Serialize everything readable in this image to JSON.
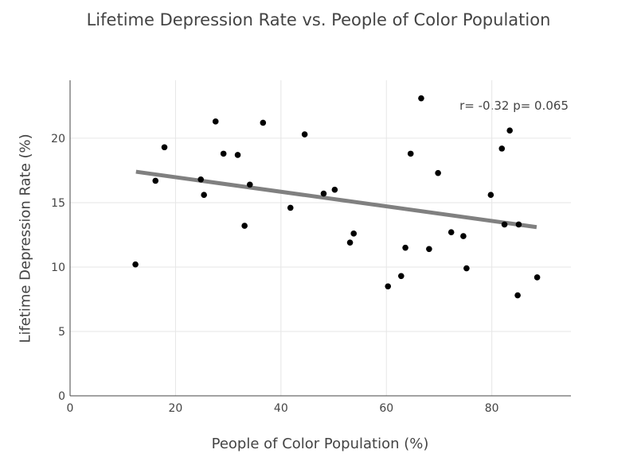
{
  "chart_data": {
    "type": "scatter",
    "title": "Lifetime Depression Rate vs. People of Color Population",
    "xlabel": "People of Color Population (%)",
    "ylabel": "Lifetime Depression Rate (%)",
    "xlim": [
      0,
      95
    ],
    "ylim": [
      0,
      24.5
    ],
    "xticks": [
      0,
      20,
      40,
      60,
      80
    ],
    "yticks": [
      0,
      5,
      10,
      15,
      20
    ],
    "grid": true,
    "annotation": "r= -0.32 p= 0.065",
    "trendline": {
      "x": [
        12.5,
        88.5
      ],
      "y": [
        17.4,
        13.1
      ]
    },
    "points": [
      {
        "x": 12.4,
        "y": 10.2
      },
      {
        "x": 16.2,
        "y": 16.7
      },
      {
        "x": 17.9,
        "y": 19.3
      },
      {
        "x": 24.8,
        "y": 16.8
      },
      {
        "x": 25.4,
        "y": 15.6
      },
      {
        "x": 27.6,
        "y": 21.3
      },
      {
        "x": 29.1,
        "y": 18.8
      },
      {
        "x": 31.8,
        "y": 18.7
      },
      {
        "x": 33.1,
        "y": 13.2
      },
      {
        "x": 34.1,
        "y": 16.4
      },
      {
        "x": 36.6,
        "y": 21.2
      },
      {
        "x": 41.8,
        "y": 14.6
      },
      {
        "x": 44.5,
        "y": 20.3
      },
      {
        "x": 48.1,
        "y": 15.7
      },
      {
        "x": 50.2,
        "y": 16.0
      },
      {
        "x": 53.1,
        "y": 11.9
      },
      {
        "x": 53.8,
        "y": 12.6
      },
      {
        "x": 60.3,
        "y": 8.5
      },
      {
        "x": 62.8,
        "y": 9.3
      },
      {
        "x": 63.6,
        "y": 11.5
      },
      {
        "x": 64.6,
        "y": 18.8
      },
      {
        "x": 66.6,
        "y": 23.1
      },
      {
        "x": 68.1,
        "y": 11.4
      },
      {
        "x": 69.8,
        "y": 17.3
      },
      {
        "x": 72.3,
        "y": 12.7
      },
      {
        "x": 74.6,
        "y": 12.4
      },
      {
        "x": 75.2,
        "y": 9.9
      },
      {
        "x": 79.8,
        "y": 15.6
      },
      {
        "x": 81.9,
        "y": 19.2
      },
      {
        "x": 82.4,
        "y": 13.3
      },
      {
        "x": 83.4,
        "y": 20.6
      },
      {
        "x": 84.9,
        "y": 7.8
      },
      {
        "x": 85.1,
        "y": 13.3
      },
      {
        "x": 88.6,
        "y": 9.2
      }
    ]
  }
}
